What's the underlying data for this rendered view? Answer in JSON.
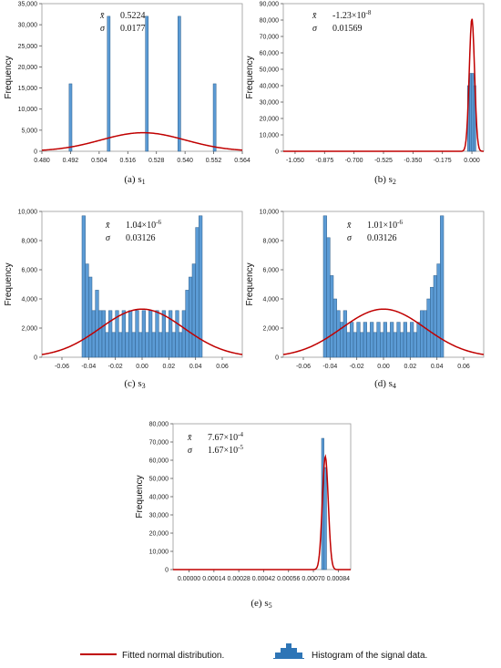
{
  "chart_data": [
    {
      "type": "bar",
      "id": "s1",
      "caption": "(a)  s",
      "caption_sub": "1",
      "ylabel": "Frequency",
      "ylim": [
        0,
        35000
      ],
      "yticks": [
        0,
        5000,
        10000,
        15000,
        20000,
        25000,
        30000,
        35000
      ],
      "ytick_labels": [
        "0",
        "5,000",
        "10,000",
        "15,000",
        "20,000",
        "25,000",
        "30,000",
        "35,000"
      ],
      "xlim": [
        0.48,
        0.564
      ],
      "xticks": [
        0.48,
        0.492,
        0.504,
        0.516,
        0.528,
        0.54,
        0.552,
        0.564
      ],
      "xtick_labels": [
        "0.480",
        "0.492",
        "0.504",
        "0.516",
        "0.528",
        "0.540",
        "0.552",
        "0.564"
      ],
      "bin_width": 0.0012,
      "bins": [
        [
          0.492,
          16000
        ],
        [
          0.508,
          32000
        ],
        [
          0.524,
          32000
        ],
        [
          0.5376,
          32000
        ],
        [
          0.5524,
          16000
        ]
      ],
      "mean_label": "x̄",
      "mean_text": "0.5224",
      "sigma_label": "σ",
      "sigma_text": "0.0177",
      "fit": {
        "mean": 0.5224,
        "sd": 0.0177,
        "peak": 4400
      }
    },
    {
      "type": "bar",
      "id": "s2",
      "caption": "(b)  s",
      "caption_sub": "2",
      "ylabel": "Frequency",
      "ylim": [
        0,
        90000
      ],
      "yticks": [
        0,
        10000,
        20000,
        30000,
        40000,
        50000,
        60000,
        70000,
        80000,
        90000
      ],
      "ytick_labels": [
        "0",
        "10,000",
        "20,000",
        "30,000",
        "40,000",
        "50,000",
        "60,000",
        "70,000",
        "80,000",
        "90,000"
      ],
      "xlim": [
        -1.12,
        0.07
      ],
      "xticks": [
        -1.05,
        -0.875,
        -0.7,
        -0.525,
        -0.35,
        -0.175,
        0.0
      ],
      "xtick_labels": [
        "-1.050",
        "-0.875",
        "-0.700",
        "-0.525",
        "-0.350",
        "-0.175",
        "0.000"
      ],
      "bin_width": 0.0125,
      "bins": [
        [
          -0.02,
          40000
        ],
        [
          -0.0075,
          47500
        ],
        [
          0.005,
          47500
        ],
        [
          0.0175,
          40000
        ]
      ],
      "mean_label": "x̄",
      "mean_text": "-1.23×10",
      "mean_exp": "-8",
      "sigma_label": "σ",
      "sigma_text": "0.01569",
      "fit": {
        "mean": 0.0,
        "sd": 0.01569,
        "peak": 81000
      }
    },
    {
      "type": "bar",
      "id": "s3",
      "caption": "(c)  s",
      "caption_sub": "3",
      "ylabel": "Frequency",
      "ylim": [
        0,
        10000
      ],
      "yticks": [
        0,
        2000,
        4000,
        6000,
        8000,
        10000
      ],
      "ytick_labels": [
        "0",
        "2,000",
        "4,000",
        "6,000",
        "8,000",
        "10,000"
      ],
      "xlim": [
        -0.075,
        0.075
      ],
      "xticks": [
        -0.06,
        -0.04,
        -0.02,
        0.0,
        0.02,
        0.04,
        0.06
      ],
      "xtick_labels": [
        "-0.06",
        "-0.04",
        "-0.02",
        "0.00",
        "0.02",
        "0.04",
        "0.06"
      ],
      "bin_start": -0.045,
      "bin_width": 0.0025,
      "counts": [
        9700,
        6400,
        5500,
        3200,
        4600,
        3200,
        3200,
        1700,
        3200,
        1700,
        3200,
        1700,
        3200,
        1700,
        3200,
        1700,
        3200,
        1700,
        3200,
        1700,
        3200,
        1700,
        3200,
        1700,
        3200,
        1700,
        3200,
        1700,
        3200,
        1700,
        3200,
        4600,
        5500,
        6400,
        8900,
        9700
      ],
      "mean_label": "x̄",
      "mean_text": "1.04×10",
      "mean_exp": "-6",
      "sigma_label": "σ",
      "sigma_text": "0.03126",
      "fit": {
        "mean": 0.0,
        "sd": 0.03126,
        "peak": 3300
      }
    },
    {
      "type": "bar",
      "id": "s4",
      "caption": "(d)  s",
      "caption_sub": "4",
      "ylabel": "Frequency",
      "ylim": [
        0,
        10000
      ],
      "yticks": [
        0,
        2000,
        4000,
        6000,
        8000,
        10000
      ],
      "ytick_labels": [
        "0",
        "2,000",
        "4,000",
        "6,000",
        "8,000",
        "10,000"
      ],
      "xlim": [
        -0.075,
        0.075
      ],
      "xticks": [
        -0.06,
        -0.04,
        -0.02,
        0.0,
        0.02,
        0.04,
        0.06
      ],
      "xtick_labels": [
        "-0.06",
        "-0.04",
        "-0.02",
        "0.00",
        "0.02",
        "0.04",
        "0.06"
      ],
      "bin_start": -0.045,
      "bin_width": 0.0025,
      "counts": [
        9700,
        8200,
        5600,
        4000,
        3200,
        2400,
        3200,
        1700,
        2400,
        1700,
        2400,
        1700,
        2400,
        1700,
        2400,
        1700,
        2400,
        1700,
        2400,
        1700,
        2400,
        1700,
        2400,
        1700,
        2400,
        1700,
        2400,
        1700,
        2400,
        3200,
        3200,
        4000,
        4800,
        5600,
        6400,
        9700
      ],
      "mean_label": "x̄",
      "mean_text": "1.01×10",
      "mean_exp": "-6",
      "sigma_label": "σ",
      "sigma_text": "0.03126",
      "fit": {
        "mean": 0.0,
        "sd": 0.03126,
        "peak": 3300
      }
    },
    {
      "type": "bar",
      "id": "s5",
      "caption": "(e)  s",
      "caption_sub": "5",
      "ylabel": "Frequency",
      "ylim": [
        0,
        80000
      ],
      "yticks": [
        0,
        10000,
        20000,
        30000,
        40000,
        50000,
        60000,
        70000,
        80000
      ],
      "ytick_labels": [
        "0",
        "10,000",
        "20,000",
        "30,000",
        "40,000",
        "50,000",
        "60,000",
        "70,000",
        "80,000"
      ],
      "xlim": [
        -9e-05,
        0.00091
      ],
      "xticks": [
        0.0,
        0.00014,
        0.00028,
        0.00042,
        0.00056,
        0.0007,
        0.00084
      ],
      "xtick_labels": [
        "0.00000",
        "0.00014",
        "0.00028",
        "0.00042",
        "0.00056",
        "0.00070",
        "0.00084"
      ],
      "bin_width": 1.4e-05,
      "bins": [
        [
          0.000753,
          72000
        ],
        [
          0.000767,
          56000
        ]
      ],
      "mean_label": "x̄",
      "mean_text": "7.67×10",
      "mean_exp": "-4",
      "sigma_label": "σ",
      "sigma_text": "1.67×10",
      "sigma_exp": "-5",
      "fit": {
        "mean": 0.000767,
        "sd": 1.67e-05,
        "peak": 62000
      }
    }
  ],
  "legend": {
    "fitted_label": "Fitted normal distribution.",
    "histogram_label": "Histogram of the signal data.",
    "fitted_color": "#c00000",
    "histogram_color": "#5b9bd5"
  }
}
